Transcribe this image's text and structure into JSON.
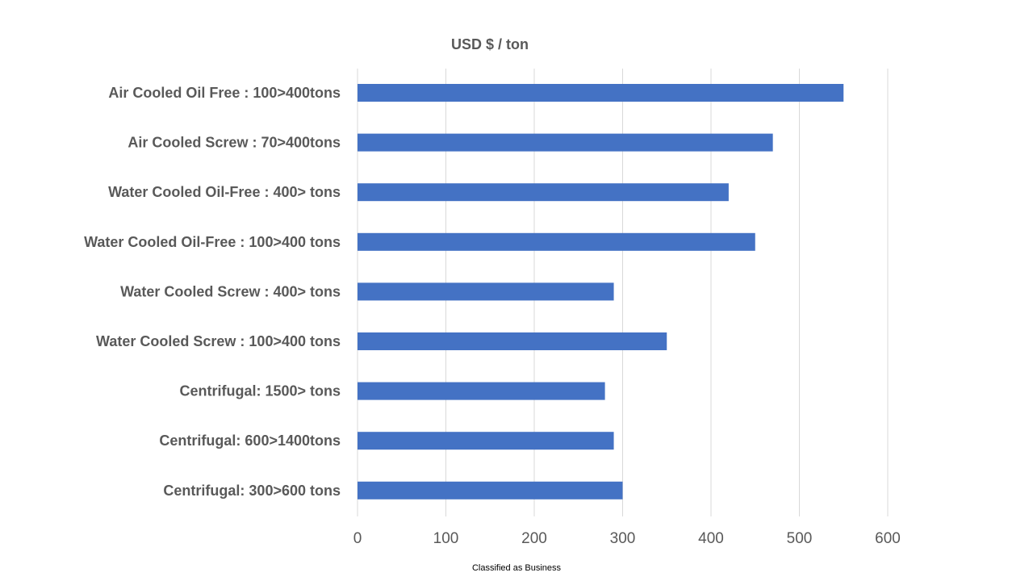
{
  "chart_data": {
    "type": "bar",
    "orientation": "horizontal",
    "title": "USD $ / ton",
    "xlabel": "",
    "ylabel": "",
    "xlim": [
      0,
      600
    ],
    "x_ticks": [
      "0",
      "100",
      "200",
      "300",
      "400",
      "500",
      "600"
    ],
    "grid": true,
    "legend": "none",
    "bar_color": "#4472C4",
    "categories": [
      "Air Cooled Oil Free : 100>400tons",
      "Air Cooled Screw : 70>400tons",
      "Water Cooled Oil-Free : 400> tons",
      "Water Cooled Oil-Free : 100>400 tons",
      "Water Cooled Screw : 400> tons",
      "Water Cooled Screw : 100>400 tons",
      "Centrifugal: 1500> tons",
      "Centrifugal: 600>1400tons",
      "Centrifugal: 300>600 tons"
    ],
    "values": [
      550,
      470,
      420,
      450,
      290,
      350,
      280,
      290,
      300
    ]
  },
  "footer": {
    "classification": "Classified as Business"
  }
}
